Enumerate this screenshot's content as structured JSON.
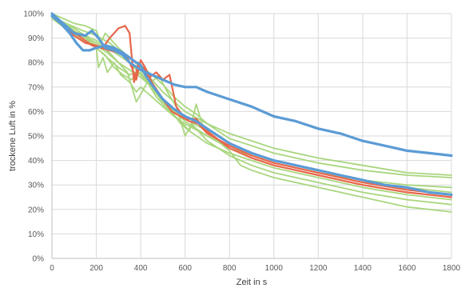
{
  "chart_data": {
    "type": "line",
    "xlabel": "Zeit in s",
    "ylabel": "trockene Luft in %",
    "xlim": [
      0,
      1800
    ],
    "ylim": [
      0,
      100
    ],
    "x_ticks": [
      "0",
      "200",
      "400",
      "600",
      "800",
      "1000",
      "1200",
      "1400",
      "1600",
      "1800"
    ],
    "y_ticks": [
      "0%",
      "10%",
      "20%",
      "30%",
      "40%",
      "50%",
      "60%",
      "70%",
      "80%",
      "90%",
      "100%"
    ],
    "grid": true,
    "legend": "none",
    "colors": {
      "green": "#a9d67e",
      "red": "#e8664a",
      "blue": "#5b9bd5"
    },
    "series": [
      {
        "color": "green",
        "points": [
          [
            0,
            100
          ],
          [
            50,
            98
          ],
          [
            100,
            96
          ],
          [
            150,
            95
          ],
          [
            200,
            93
          ],
          [
            220,
            88
          ],
          [
            240,
            92
          ],
          [
            260,
            90
          ],
          [
            300,
            86
          ],
          [
            350,
            82
          ],
          [
            400,
            78
          ],
          [
            450,
            73
          ],
          [
            500,
            68
          ],
          [
            550,
            64
          ],
          [
            600,
            60
          ],
          [
            700,
            55
          ],
          [
            800,
            49
          ],
          [
            900,
            46
          ],
          [
            1000,
            43
          ],
          [
            1200,
            39
          ],
          [
            1400,
            36
          ],
          [
            1600,
            34
          ],
          [
            1800,
            33
          ]
        ]
      },
      {
        "color": "green",
        "points": [
          [
            0,
            100
          ],
          [
            50,
            96
          ],
          [
            100,
            93
          ],
          [
            150,
            90
          ],
          [
            200,
            86
          ],
          [
            210,
            78
          ],
          [
            230,
            82
          ],
          [
            250,
            76
          ],
          [
            280,
            80
          ],
          [
            310,
            75
          ],
          [
            350,
            72
          ],
          [
            380,
            68
          ],
          [
            400,
            70
          ],
          [
            450,
            66
          ],
          [
            500,
            62
          ],
          [
            550,
            58
          ],
          [
            600,
            55
          ],
          [
            700,
            50
          ],
          [
            800,
            45
          ],
          [
            900,
            42
          ],
          [
            1000,
            39
          ],
          [
            1200,
            35
          ],
          [
            1400,
            31
          ],
          [
            1600,
            29
          ],
          [
            1800,
            27
          ]
        ]
      },
      {
        "color": "green",
        "points": [
          [
            0,
            99
          ],
          [
            60,
            95
          ],
          [
            120,
            92
          ],
          [
            180,
            89
          ],
          [
            220,
            87
          ],
          [
            260,
            84
          ],
          [
            300,
            80
          ],
          [
            340,
            76
          ],
          [
            360,
            70
          ],
          [
            380,
            64
          ],
          [
            400,
            67
          ],
          [
            430,
            72
          ],
          [
            470,
            66
          ],
          [
            520,
            61
          ],
          [
            580,
            56
          ],
          [
            620,
            52
          ],
          [
            700,
            47
          ],
          [
            800,
            43
          ],
          [
            900,
            40
          ],
          [
            1000,
            37
          ],
          [
            1200,
            33
          ],
          [
            1400,
            29
          ],
          [
            1600,
            26
          ],
          [
            1800,
            24
          ]
        ]
      },
      {
        "color": "green",
        "points": [
          [
            0,
            99
          ],
          [
            50,
            95
          ],
          [
            100,
            92
          ],
          [
            150,
            89
          ],
          [
            200,
            86
          ],
          [
            250,
            82
          ],
          [
            300,
            78
          ],
          [
            350,
            75
          ],
          [
            400,
            77
          ],
          [
            450,
            72
          ],
          [
            480,
            75
          ],
          [
            520,
            68
          ],
          [
            560,
            62
          ],
          [
            600,
            50
          ],
          [
            630,
            55
          ],
          [
            660,
            52
          ],
          [
            700,
            48
          ],
          [
            800,
            42
          ],
          [
            900,
            38
          ],
          [
            1000,
            35
          ],
          [
            1200,
            31
          ],
          [
            1400,
            27
          ],
          [
            1600,
            24
          ],
          [
            1800,
            22
          ]
        ]
      },
      {
        "color": "green",
        "points": [
          [
            0,
            98
          ],
          [
            60,
            94
          ],
          [
            120,
            90
          ],
          [
            200,
            86
          ],
          [
            240,
            83
          ],
          [
            280,
            78
          ],
          [
            320,
            75
          ],
          [
            360,
            73
          ],
          [
            400,
            76
          ],
          [
            440,
            71
          ],
          [
            490,
            65
          ],
          [
            540,
            60
          ],
          [
            580,
            55
          ],
          [
            620,
            52
          ],
          [
            650,
            63
          ],
          [
            680,
            54
          ],
          [
            720,
            49
          ],
          [
            800,
            45
          ],
          [
            900,
            41
          ],
          [
            1000,
            38
          ],
          [
            1200,
            34
          ],
          [
            1400,
            30
          ],
          [
            1600,
            27
          ],
          [
            1800,
            25
          ]
        ]
      },
      {
        "color": "green",
        "points": [
          [
            0,
            99
          ],
          [
            50,
            96
          ],
          [
            100,
            94
          ],
          [
            150,
            91
          ],
          [
            200,
            89
          ],
          [
            250,
            86
          ],
          [
            300,
            83
          ],
          [
            350,
            80
          ],
          [
            400,
            75
          ],
          [
            450,
            70
          ],
          [
            500,
            65
          ],
          [
            550,
            60
          ],
          [
            600,
            57
          ],
          [
            700,
            52
          ],
          [
            760,
            47
          ],
          [
            800,
            44
          ],
          [
            850,
            38
          ],
          [
            900,
            36
          ],
          [
            1000,
            33
          ],
          [
            1200,
            29
          ],
          [
            1400,
            25
          ],
          [
            1600,
            21
          ],
          [
            1800,
            19
          ]
        ]
      },
      {
        "color": "green",
        "points": [
          [
            0,
            100
          ],
          [
            40,
            97
          ],
          [
            90,
            95
          ],
          [
            140,
            93
          ],
          [
            200,
            91
          ],
          [
            260,
            88
          ],
          [
            300,
            85
          ],
          [
            360,
            81
          ],
          [
            400,
            79
          ],
          [
            450,
            75
          ],
          [
            500,
            71
          ],
          [
            550,
            66
          ],
          [
            600,
            62
          ],
          [
            650,
            59
          ],
          [
            700,
            55
          ],
          [
            800,
            51
          ],
          [
            900,
            48
          ],
          [
            1000,
            45
          ],
          [
            1200,
            41
          ],
          [
            1400,
            38
          ],
          [
            1600,
            35
          ],
          [
            1800,
            34
          ]
        ]
      },
      {
        "color": "green",
        "points": [
          [
            0,
            99
          ],
          [
            50,
            96
          ],
          [
            100,
            93
          ],
          [
            150,
            90
          ],
          [
            200,
            87
          ],
          [
            250,
            84
          ],
          [
            300,
            80
          ],
          [
            350,
            77
          ],
          [
            400,
            74
          ],
          [
            450,
            70
          ],
          [
            500,
            65
          ],
          [
            550,
            60
          ],
          [
            600,
            56
          ],
          [
            700,
            50
          ],
          [
            800,
            46
          ],
          [
            900,
            42
          ],
          [
            1000,
            39
          ],
          [
            1200,
            35
          ],
          [
            1400,
            32
          ],
          [
            1600,
            30
          ],
          [
            1800,
            29
          ]
        ]
      },
      {
        "color": "red",
        "points": [
          [
            0,
            99
          ],
          [
            50,
            95
          ],
          [
            100,
            91
          ],
          [
            150,
            88
          ],
          [
            200,
            87
          ],
          [
            230,
            86
          ],
          [
            260,
            90
          ],
          [
            300,
            94
          ],
          [
            330,
            95
          ],
          [
            350,
            92
          ],
          [
            370,
            72
          ],
          [
            390,
            80
          ],
          [
            410,
            78
          ],
          [
            440,
            74
          ],
          [
            470,
            76
          ],
          [
            500,
            73
          ],
          [
            530,
            75
          ],
          [
            560,
            62
          ],
          [
            600,
            57
          ],
          [
            650,
            57
          ],
          [
            700,
            52
          ],
          [
            800,
            45
          ],
          [
            900,
            41
          ],
          [
            1000,
            38
          ],
          [
            1100,
            36
          ],
          [
            1200,
            34
          ],
          [
            1400,
            30
          ],
          [
            1600,
            27
          ],
          [
            1800,
            25
          ]
        ]
      },
      {
        "color": "red",
        "points": [
          [
            0,
            99
          ],
          [
            60,
            95
          ],
          [
            120,
            91
          ],
          [
            180,
            87
          ],
          [
            220,
            86
          ],
          [
            260,
            85
          ],
          [
            300,
            84
          ],
          [
            340,
            82
          ],
          [
            360,
            78
          ],
          [
            380,
            73
          ],
          [
            400,
            81
          ],
          [
            420,
            78
          ],
          [
            450,
            72
          ],
          [
            500,
            65
          ],
          [
            540,
            60
          ],
          [
            580,
            58
          ],
          [
            620,
            56
          ],
          [
            660,
            55
          ],
          [
            700,
            51
          ],
          [
            800,
            46
          ],
          [
            900,
            42
          ],
          [
            1000,
            39
          ],
          [
            1200,
            35
          ],
          [
            1400,
            31
          ],
          [
            1600,
            28
          ],
          [
            1800,
            26
          ]
        ]
      },
      {
        "color": "blue",
        "points": [
          [
            0,
            100
          ],
          [
            50,
            96
          ],
          [
            100,
            92
          ],
          [
            150,
            91
          ],
          [
            180,
            93
          ],
          [
            210,
            90
          ],
          [
            240,
            86
          ],
          [
            280,
            85
          ],
          [
            320,
            83
          ],
          [
            350,
            80
          ],
          [
            400,
            77
          ],
          [
            450,
            75
          ],
          [
            500,
            73
          ],
          [
            550,
            71
          ],
          [
            600,
            70
          ],
          [
            650,
            70
          ],
          [
            700,
            68
          ],
          [
            800,
            65
          ],
          [
            900,
            62
          ],
          [
            1000,
            58
          ],
          [
            1100,
            56
          ],
          [
            1200,
            53
          ],
          [
            1300,
            51
          ],
          [
            1400,
            48
          ],
          [
            1500,
            46
          ],
          [
            1600,
            44
          ],
          [
            1700,
            43
          ],
          [
            1800,
            42
          ]
        ]
      },
      {
        "color": "blue",
        "points": [
          [
            0,
            99
          ],
          [
            40,
            96
          ],
          [
            80,
            92
          ],
          [
            110,
            88
          ],
          [
            140,
            85
          ],
          [
            170,
            85
          ],
          [
            200,
            86
          ],
          [
            240,
            87
          ],
          [
            280,
            86
          ],
          [
            320,
            84
          ],
          [
            350,
            82
          ],
          [
            380,
            80
          ],
          [
            400,
            79
          ],
          [
            420,
            75
          ],
          [
            450,
            71
          ],
          [
            500,
            65
          ],
          [
            550,
            61
          ],
          [
            600,
            58
          ],
          [
            650,
            56
          ],
          [
            700,
            53
          ],
          [
            750,
            50
          ],
          [
            800,
            47
          ],
          [
            900,
            43
          ],
          [
            1000,
            40
          ],
          [
            1100,
            38
          ],
          [
            1200,
            36
          ],
          [
            1300,
            34
          ],
          [
            1400,
            32
          ],
          [
            1500,
            30
          ],
          [
            1600,
            29
          ],
          [
            1700,
            27
          ],
          [
            1800,
            26
          ]
        ]
      }
    ]
  }
}
